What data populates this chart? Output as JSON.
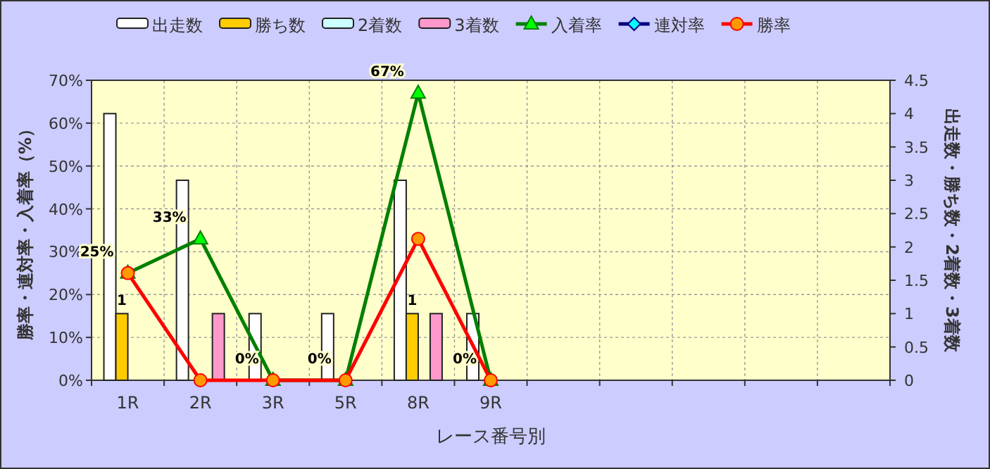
{
  "chart_data": {
    "type": "bar",
    "xlabel": "レース番号別",
    "ylabel": "勝率・連対率・入着率（%）",
    "y2label": "出走数・勝ち数・2着数・3着数",
    "categories": [
      "1R",
      "2R",
      "3R",
      "5R",
      "8R",
      "9R",
      null,
      null,
      null,
      null,
      null
    ],
    "series": [
      {
        "name": "出走数",
        "axis": "y2",
        "color": "#ffffff",
        "values": [
          4,
          3,
          1,
          1,
          3,
          1,
          null,
          null,
          null,
          null,
          null
        ]
      },
      {
        "name": "勝ち数",
        "axis": "y2",
        "color": "#ffcc00",
        "values": [
          1,
          0,
          0,
          0,
          1,
          0,
          null,
          null,
          null,
          null,
          null
        ],
        "value_labels": [
          "1",
          null,
          null,
          null,
          "1",
          null,
          null,
          null,
          null,
          null,
          null
        ]
      },
      {
        "name": "2着数",
        "axis": "y2",
        "color": "#ccffff",
        "values": [
          0,
          0,
          0,
          0,
          0,
          0,
          null,
          null,
          null,
          null,
          null
        ]
      },
      {
        "name": "3着数",
        "axis": "y2",
        "color": "#ff99cc",
        "values": [
          0,
          1,
          0,
          0,
          1,
          0,
          null,
          null,
          null,
          null,
          null
        ]
      },
      {
        "name": "入着率",
        "type": "line",
        "color": "#008000",
        "marker": "triangle",
        "values": [
          25,
          33,
          0,
          0,
          67,
          0,
          null,
          null,
          null,
          null,
          null
        ],
        "value_labels": [
          "25%",
          "33%",
          "0%",
          "0%",
          "67%",
          "0%",
          null,
          null,
          null,
          null,
          null
        ]
      },
      {
        "name": "連対率",
        "type": "line",
        "color": "#000080",
        "marker": "diamond",
        "values": [
          null,
          null,
          null,
          null,
          null,
          null,
          null,
          null,
          null,
          null,
          null
        ]
      },
      {
        "name": "勝率",
        "type": "line",
        "color": "#ff0000",
        "marker": "circle",
        "values": [
          25,
          0,
          0,
          0,
          33,
          0,
          null,
          null,
          null,
          null,
          null
        ]
      }
    ],
    "ylim": [
      0,
      70
    ],
    "yticks": [
      {
        "value": 0,
        "label": "0%"
      },
      {
        "value": 10,
        "label": "10%"
      },
      {
        "value": 20,
        "label": "20%"
      },
      {
        "value": 30,
        "label": "30%"
      },
      {
        "value": 40,
        "label": "40%"
      },
      {
        "value": 50,
        "label": "50%"
      },
      {
        "value": 60,
        "label": "60%"
      },
      {
        "value": 70,
        "label": "70%"
      }
    ],
    "y2lim": [
      0,
      4.5
    ],
    "y2ticks": [
      0,
      0.5,
      1,
      1.5,
      2,
      2.5,
      3,
      3.5,
      4,
      4.5
    ],
    "grid": true,
    "legend": "top"
  }
}
